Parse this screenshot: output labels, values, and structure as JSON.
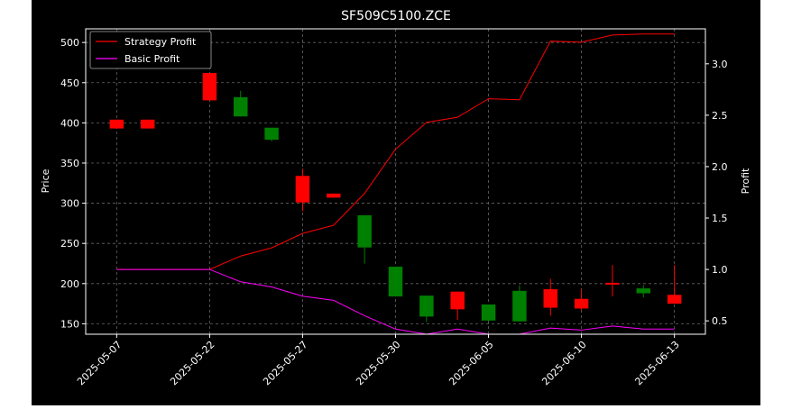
{
  "chart_data": {
    "type": "candlestick",
    "title": "SF509C5100.ZCE",
    "ylabel": "Price",
    "ylabel_right": "Profit",
    "ylim": [
      137,
      517
    ],
    "ylim_right": [
      0.37,
      3.34
    ],
    "grid": true,
    "legend_position": "top-left",
    "x_tick_labels": [
      "2025-05-07",
      "2025-05-22",
      "2025-05-27",
      "2025-05-30",
      "2025-06-05",
      "2025-06-10",
      "2025-06-13"
    ],
    "x_tick_positions": [
      0,
      3,
      6,
      9,
      12,
      15,
      18
    ],
    "y_ticks": [
      150,
      200,
      250,
      300,
      350,
      400,
      450,
      500
    ],
    "y_ticks_right": [
      0.5,
      1.0,
      1.5,
      2.0,
      2.5,
      3.0
    ],
    "candles": [
      {
        "x": 0,
        "open": 393,
        "close": 404,
        "high": 404,
        "low": 393
      },
      {
        "x": 1,
        "open": 393,
        "close": 404,
        "high": 404,
        "low": 393
      },
      {
        "x": 3,
        "open": 428,
        "close": 462,
        "high": 462,
        "low": 428
      },
      {
        "x": 4,
        "open": 432,
        "close": 408,
        "high": 440,
        "low": 408
      },
      {
        "x": 5,
        "open": 394,
        "close": 379,
        "high": 394,
        "low": 377
      },
      {
        "x": 6,
        "open": 301,
        "close": 334,
        "high": 343,
        "low": 290
      },
      {
        "x": 7,
        "open": 307,
        "close": 312,
        "high": 312,
        "low": 307
      },
      {
        "x": 8,
        "open": 285,
        "close": 245,
        "high": 285,
        "low": 225
      },
      {
        "x": 9,
        "open": 221,
        "close": 184,
        "high": 221,
        "low": 184
      },
      {
        "x": 10,
        "open": 185,
        "close": 159,
        "high": 185,
        "low": 152
      },
      {
        "x": 11,
        "open": 168,
        "close": 190,
        "high": 190,
        "low": 155
      },
      {
        "x": 12,
        "open": 174,
        "close": 154,
        "high": 174,
        "low": 154
      },
      {
        "x": 13,
        "open": 191,
        "close": 153,
        "high": 198,
        "low": 153
      },
      {
        "x": 14,
        "open": 170,
        "close": 193,
        "high": 206,
        "low": 160
      },
      {
        "x": 15,
        "open": 169,
        "close": 181,
        "high": 193,
        "low": 167
      },
      {
        "x": 16,
        "open": 199,
        "close": 201,
        "high": 223,
        "low": 184
      },
      {
        "x": 17,
        "open": 194,
        "close": 188,
        "high": 198,
        "low": 183
      },
      {
        "x": 18,
        "open": 175,
        "close": 186,
        "high": 223,
        "low": 175
      }
    ],
    "series": [
      {
        "name": "Strategy Profit",
        "color": "#ff0000",
        "axis": "right",
        "x": [
          0,
          3,
          4,
          5,
          6,
          7,
          8,
          9,
          10,
          11,
          12,
          13,
          14,
          15,
          16,
          17,
          18
        ],
        "values": [
          1.0,
          1.0,
          1.13,
          1.21,
          1.35,
          1.43,
          1.74,
          2.17,
          2.43,
          2.48,
          2.66,
          2.65,
          3.22,
          3.21,
          3.28,
          3.29,
          3.29
        ]
      },
      {
        "name": "Basic Profit",
        "color": "#ff00ff",
        "axis": "right",
        "x": [
          0,
          3,
          4,
          5,
          6,
          7,
          8,
          9,
          10,
          11,
          12,
          13,
          14,
          15,
          16,
          17,
          18
        ],
        "values": [
          1.0,
          1.0,
          0.88,
          0.83,
          0.74,
          0.7,
          0.55,
          0.42,
          0.37,
          0.42,
          0.37,
          0.37,
          0.43,
          0.41,
          0.45,
          0.42,
          0.42
        ]
      }
    ],
    "colors": {
      "up": "#ff0000",
      "down": "#008000",
      "background": "#000000",
      "text": "#ffffff"
    }
  }
}
